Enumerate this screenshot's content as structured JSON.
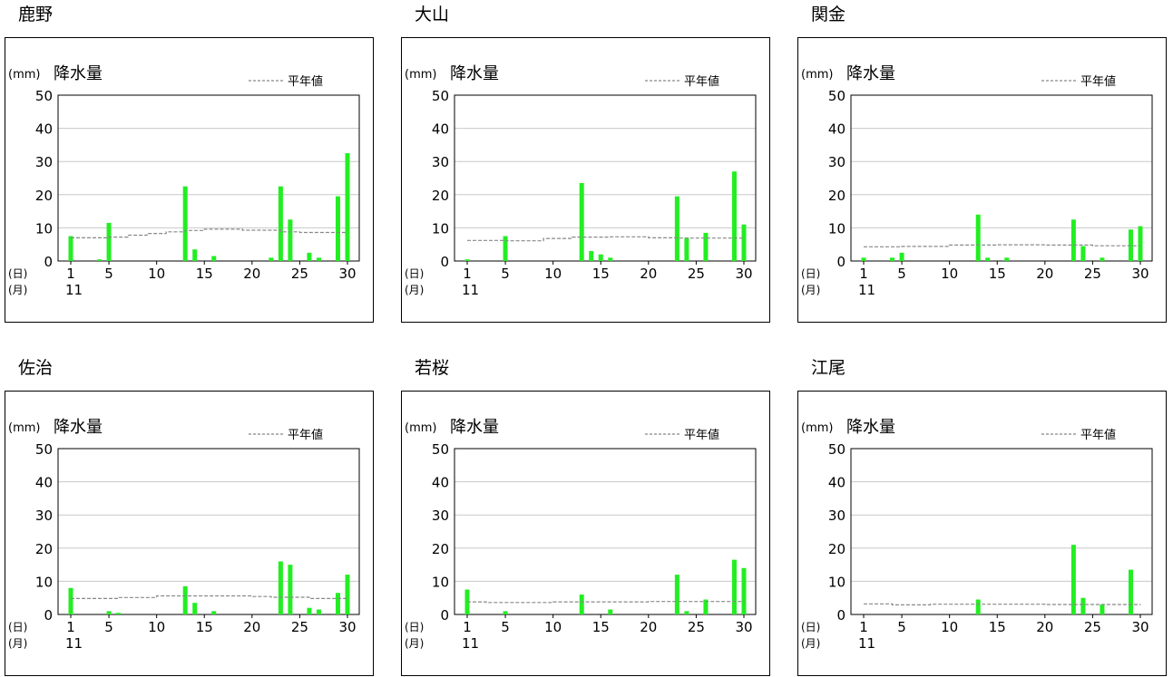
{
  "labels": {
    "unit": "(mm)",
    "title": "降水量",
    "normal_label": "平年値",
    "day_marker": "(日)",
    "month_marker": "(月)",
    "month_value": "11"
  },
  "colors": {
    "bar": "#22ee22",
    "normal_line": "#888888",
    "grid": "#c8c8c8",
    "frame": "#000000"
  },
  "chart_data": [
    {
      "type": "bar",
      "station": "鹿野",
      "ylabel": "降水量",
      "unit": "(mm)",
      "ylim": [
        0,
        50
      ],
      "yticks": [
        0,
        10,
        20,
        30,
        40,
        50
      ],
      "xlim": [
        1,
        30
      ],
      "xticks": [
        1,
        5,
        10,
        15,
        20,
        25,
        30
      ],
      "grid": true,
      "legend": "top-right",
      "series": [
        {
          "name": "降水量",
          "kind": "bar",
          "x": [
            1,
            4,
            5,
            13,
            14,
            16,
            22,
            23,
            24,
            26,
            27,
            29,
            30
          ],
          "values": [
            7.5,
            0.5,
            11.5,
            22.5,
            3.5,
            1.5,
            1,
            22.5,
            12.5,
            2.5,
            1,
            19.5,
            32.5
          ]
        },
        {
          "name": "平年値",
          "kind": "step",
          "x": [
            1,
            5,
            7,
            9,
            11,
            13,
            15,
            19,
            23,
            25,
            30
          ],
          "values": [
            7,
            7.2,
            7.8,
            8.3,
            8.8,
            9.2,
            9.6,
            9.3,
            8.8,
            8.6,
            8.6
          ]
        }
      ]
    },
    {
      "type": "bar",
      "station": "大山",
      "ylabel": "降水量",
      "unit": "(mm)",
      "ylim": [
        0,
        50
      ],
      "yticks": [
        0,
        10,
        20,
        30,
        40,
        50
      ],
      "xlim": [
        1,
        30
      ],
      "xticks": [
        1,
        5,
        10,
        15,
        20,
        25,
        30
      ],
      "grid": true,
      "legend": "top-right",
      "series": [
        {
          "name": "降水量",
          "kind": "bar",
          "x": [
            1,
            5,
            13,
            14,
            15,
            16,
            23,
            24,
            26,
            29,
            30
          ],
          "values": [
            0.5,
            7.5,
            23.5,
            3,
            2,
            1,
            19.5,
            7,
            8.5,
            27,
            11
          ]
        },
        {
          "name": "平年値",
          "kind": "step",
          "x": [
            1,
            5,
            9,
            12,
            16,
            20,
            23,
            30
          ],
          "values": [
            6.2,
            6.1,
            6.8,
            7.2,
            7.3,
            7,
            6.9,
            7.2
          ]
        }
      ]
    },
    {
      "type": "bar",
      "station": "関金",
      "ylabel": "降水量",
      "unit": "(mm)",
      "ylim": [
        0,
        50
      ],
      "yticks": [
        0,
        10,
        20,
        30,
        40,
        50
      ],
      "xlim": [
        1,
        30
      ],
      "xticks": [
        1,
        5,
        10,
        15,
        20,
        25,
        30
      ],
      "grid": true,
      "legend": "top-right",
      "series": [
        {
          "name": "降水量",
          "kind": "bar",
          "x": [
            1,
            4,
            5,
            13,
            14,
            16,
            23,
            24,
            26,
            29,
            30
          ],
          "values": [
            1,
            1,
            2.5,
            14,
            1,
            1,
            12.5,
            4.5,
            1,
            9.5,
            10.5
          ]
        },
        {
          "name": "平年値",
          "kind": "step",
          "x": [
            1,
            5,
            10,
            15,
            20,
            25,
            30
          ],
          "values": [
            4.3,
            4.4,
            4.8,
            4.9,
            4.8,
            4.6,
            4.6
          ]
        }
      ]
    },
    {
      "type": "bar",
      "station": "佐治",
      "ylabel": "降水量",
      "unit": "(mm)",
      "ylim": [
        0,
        50
      ],
      "yticks": [
        0,
        10,
        20,
        30,
        40,
        50
      ],
      "xlim": [
        1,
        30
      ],
      "xticks": [
        1,
        5,
        10,
        15,
        20,
        25,
        30
      ],
      "grid": true,
      "legend": "top-right",
      "series": [
        {
          "name": "降水量",
          "kind": "bar",
          "x": [
            1,
            5,
            6,
            13,
            14,
            16,
            23,
            24,
            26,
            27,
            29,
            30
          ],
          "values": [
            8,
            1,
            0.5,
            8.5,
            3.5,
            1,
            16,
            15,
            2,
            1.5,
            6.5,
            12
          ]
        },
        {
          "name": "平年値",
          "kind": "step",
          "x": [
            1,
            6,
            10,
            20,
            22,
            26,
            30
          ],
          "values": [
            4.8,
            5.1,
            5.6,
            5.4,
            5.2,
            4.8,
            4.8
          ]
        }
      ]
    },
    {
      "type": "bar",
      "station": "若桜",
      "ylabel": "降水量",
      "unit": "(mm)",
      "ylim": [
        0,
        50
      ],
      "yticks": [
        0,
        10,
        20,
        30,
        40,
        50
      ],
      "xlim": [
        1,
        30
      ],
      "xticks": [
        1,
        5,
        10,
        15,
        20,
        25,
        30
      ],
      "grid": true,
      "legend": "top-right",
      "series": [
        {
          "name": "降水量",
          "kind": "bar",
          "x": [
            1,
            5,
            13,
            16,
            23,
            24,
            26,
            29,
            30
          ],
          "values": [
            7.5,
            1,
            6,
            1.5,
            12,
            1,
            4.5,
            16.5,
            14
          ]
        },
        {
          "name": "平年値",
          "kind": "step",
          "x": [
            1,
            3,
            10,
            20,
            30
          ],
          "values": [
            3.8,
            3.6,
            3.8,
            3.9,
            4.2
          ]
        }
      ]
    },
    {
      "type": "bar",
      "station": "江尾",
      "ylabel": "降水量",
      "unit": "(mm)",
      "ylim": [
        0,
        50
      ],
      "yticks": [
        0,
        10,
        20,
        30,
        40,
        50
      ],
      "xlim": [
        1,
        30
      ],
      "xticks": [
        1,
        5,
        10,
        15,
        20,
        25,
        30
      ],
      "grid": true,
      "legend": "top-right",
      "series": [
        {
          "name": "降水量",
          "kind": "bar",
          "x": [
            13,
            23,
            24,
            26,
            29
          ],
          "values": [
            4.5,
            21,
            5,
            3,
            13.5
          ]
        },
        {
          "name": "平年値",
          "kind": "step",
          "x": [
            1,
            4,
            8,
            20,
            30
          ],
          "values": [
            3.2,
            2.9,
            3.1,
            3,
            3.1
          ]
        }
      ]
    }
  ]
}
